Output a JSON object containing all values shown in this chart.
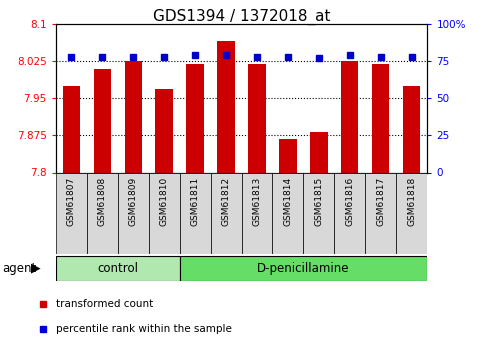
{
  "title": "GDS1394 / 1372018_at",
  "samples": [
    "GSM61807",
    "GSM61808",
    "GSM61809",
    "GSM61810",
    "GSM61811",
    "GSM61812",
    "GSM61813",
    "GSM61814",
    "GSM61815",
    "GSM61816",
    "GSM61817",
    "GSM61818"
  ],
  "bar_values": [
    7.975,
    8.01,
    8.025,
    7.968,
    8.02,
    8.065,
    8.02,
    7.868,
    7.882,
    8.025,
    8.02,
    7.975
  ],
  "percentile_values": [
    78,
    78,
    78,
    78,
    79,
    79,
    78,
    78,
    77,
    79,
    78,
    78
  ],
  "bar_bottom": 7.8,
  "ylim_left": [
    7.8,
    8.1
  ],
  "ylim_right": [
    0,
    100
  ],
  "yticks_left": [
    7.8,
    7.875,
    7.95,
    8.025,
    8.1
  ],
  "ytick_labels_left": [
    "7.8",
    "7.875",
    "7.95",
    "8.025",
    "8.1"
  ],
  "yticks_right": [
    0,
    25,
    50,
    75,
    100
  ],
  "ytick_labels_right": [
    "0",
    "25",
    "50",
    "75",
    "100%"
  ],
  "hlines": [
    7.875,
    7.95,
    8.025
  ],
  "bar_color": "#cc0000",
  "percentile_color": "#0000cc",
  "bar_width": 0.55,
  "control_count": 4,
  "total_count": 12,
  "control_label": "control",
  "treatment_label": "D-penicillamine",
  "control_bg": "#b0e8b0",
  "treatment_bg": "#66dd66",
  "tick_bg": "#d8d8d8",
  "group_label": "agent",
  "legend_bar_label": "transformed count",
  "legend_pct_label": "percentile rank within the sample",
  "title_fontsize": 11,
  "tick_fontsize": 7.5,
  "label_fontsize": 8.5,
  "ax_bg": "#ffffff"
}
